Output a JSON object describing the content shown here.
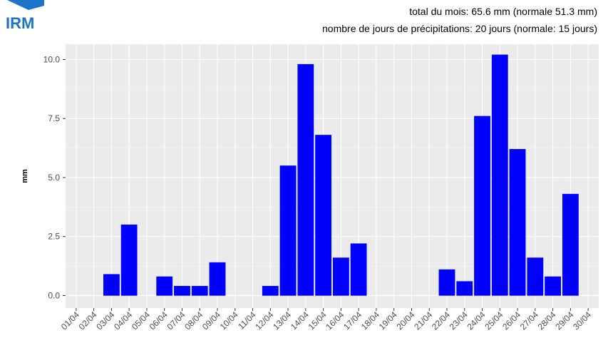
{
  "logo": "IRM",
  "chart_data": {
    "type": "bar",
    "subtitle_lines": [
      "total du mois: 65.6 mm (normale 51.3 mm)",
      "nombre de jours de précipitations: 20 jours (normale: 15 jours)"
    ],
    "y_label": "mm",
    "categories": [
      "01/04",
      "02/04",
      "03/04",
      "04/04",
      "05/04",
      "06/04",
      "07/04",
      "08/04",
      "09/04",
      "10/04",
      "11/04",
      "12/04",
      "13/04",
      "14/04",
      "15/04",
      "16/04",
      "17/04",
      "18/04",
      "19/04",
      "20/04",
      "21/04",
      "22/04",
      "23/04",
      "24/04",
      "25/04",
      "26/04",
      "27/04",
      "28/04",
      "29/04",
      "30/04"
    ],
    "values": [
      0,
      0,
      0.9,
      3.0,
      0,
      0.8,
      0.4,
      0.4,
      1.4,
      0,
      0,
      0.4,
      5.5,
      9.8,
      6.8,
      1.6,
      2.2,
      0,
      0,
      0,
      0,
      1.1,
      0.6,
      7.6,
      10.2,
      6.2,
      1.6,
      0.8,
      4.3,
      0
    ],
    "color": "#0000ff",
    "ylim": [
      -0.53,
      10.65
    ],
    "yticks": [
      {
        "value": 0,
        "label": "0.0"
      },
      2.5,
      {
        "value": 5,
        "label": "5.0"
      },
      7.5,
      {
        "value": 10,
        "label": "10.0"
      }
    ],
    "grid": true
  }
}
